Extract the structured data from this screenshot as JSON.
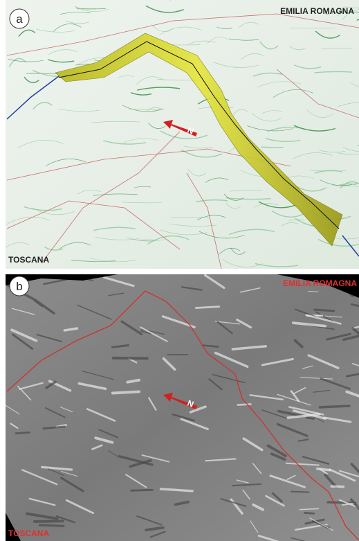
{
  "panels": [
    {
      "label": "a",
      "region_north": "EMILIA ROMAGNA",
      "region_south": "TOSCANA",
      "arrow_label": "N"
    },
    {
      "label": "b",
      "region_north": "EMILIA ROMAGNA",
      "region_south": "TOSCANA",
      "arrow_label": "N"
    }
  ]
}
